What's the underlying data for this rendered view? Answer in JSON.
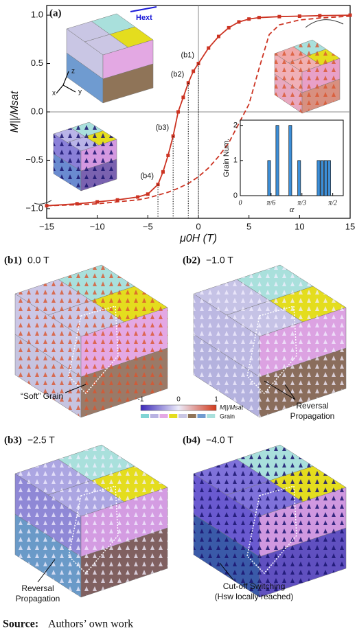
{
  "chart_data": [
    {
      "type": "line",
      "panel_label": "(a)",
      "xlabel": "μ0H (T)",
      "ylabel": "M||/Msat",
      "xlim": [
        -15,
        15
      ],
      "xticks": [
        {
          "value": -15,
          "label": "−15"
        },
        {
          "value": -10,
          "label": "−10"
        },
        {
          "value": -5,
          "label": "−5"
        },
        0,
        5,
        10,
        15
      ],
      "ylim": [
        -1.1,
        1.1
      ],
      "yticks": [
        {
          "value": -1,
          "label": "−1.0"
        },
        {
          "value": -0.5,
          "label": "−0.5"
        },
        {
          "value": 0,
          "label": "0.0"
        },
        0.5,
        {
          "value": 1,
          "label": "1.0"
        }
      ],
      "zero_lines": true,
      "series": [
        {
          "style": "solid",
          "color": "#cc3322",
          "x": [
            15,
            12,
            10,
            8,
            6,
            5,
            4,
            3,
            2,
            1,
            0,
            -0.5,
            -1,
            -1.5,
            -2,
            -2.5,
            -3,
            -3.5,
            -4,
            -5,
            -6,
            -8,
            -10,
            -12,
            -15
          ],
          "values": [
            1.0,
            0.995,
            0.99,
            0.985,
            0.975,
            0.96,
            0.93,
            0.87,
            0.78,
            0.66,
            0.5,
            0.42,
            0.3,
            0.15,
            0.0,
            -0.25,
            -0.45,
            -0.62,
            -0.75,
            -0.85,
            -0.88,
            -0.91,
            -0.93,
            -0.95,
            -0.97
          ]
        },
        {
          "style": "dashed",
          "color": "#cc3322",
          "x": [
            -15,
            -12,
            -10,
            -8,
            -6,
            -5,
            -4,
            -3,
            -2,
            -1,
            0,
            1,
            2,
            3,
            4,
            5,
            6,
            7,
            8,
            10,
            12,
            15
          ],
          "values": [
            -0.97,
            -0.96,
            -0.95,
            -0.93,
            -0.91,
            -0.89,
            -0.86,
            -0.83,
            -0.79,
            -0.74,
            -0.67,
            -0.58,
            -0.46,
            -0.32,
            -0.12,
            0.08,
            0.45,
            0.8,
            0.9,
            0.95,
            0.97,
            0.99
          ]
        }
      ],
      "points": [
        {
          "label": "(b1)",
          "x": 0,
          "y": 0.5
        },
        {
          "label": "(b2)",
          "x": -1,
          "y": 0.3
        },
        {
          "label": "(b3)",
          "x": -2.5,
          "y": -0.25
        },
        {
          "label": "(b4)",
          "x": -4,
          "y": -0.75
        }
      ],
      "annotations": {
        "field": "Hext",
        "axis_x": "x",
        "axis_y": "y",
        "axis_z": "z"
      }
    },
    {
      "type": "bar",
      "color": "#3d8fd8",
      "xlabel": "α",
      "ylabel": "Grain Num.",
      "xlim": [
        0,
        1.75
      ],
      "xticks": [
        0,
        {
          "value": 0.5236,
          "label": "π/6"
        },
        {
          "value": 1.0472,
          "label": "π/3"
        },
        {
          "value": 1.5708,
          "label": "π/2"
        }
      ],
      "ylim": [
        0,
        2.15
      ],
      "yticks": [
        0,
        1,
        2
      ],
      "x": [
        0.49,
        0.63,
        0.85,
        1.0,
        1.33,
        1.39,
        1.45,
        1.51
      ],
      "values": [
        1,
        2,
        2,
        1,
        1,
        1,
        1,
        1
      ]
    }
  ],
  "panels": [
    {
      "label": "(b1)",
      "field": "0.0 T"
    },
    {
      "label": "(b2)",
      "field": "−1.0 T"
    },
    {
      "label": "(b3)",
      "field": "−2.5 T"
    },
    {
      "label": "(b4)",
      "field": "−4.0 T"
    }
  ],
  "annotations": {
    "soft_grain": "“Soft” Grain",
    "reversal_1": [
      "Reversal",
      "Propagation"
    ],
    "reversal_2": [
      "Reversal",
      "Propagation"
    ],
    "cutoff": [
      "Cut-off Switching",
      "(Hsw locally reached)"
    ]
  },
  "colorbar": {
    "min": "-1",
    "mid": "0",
    "max": "1",
    "label": "M||/Msat",
    "grain": "Grain"
  },
  "source": {
    "label": "Source:",
    "text": "Authors’ own work"
  }
}
